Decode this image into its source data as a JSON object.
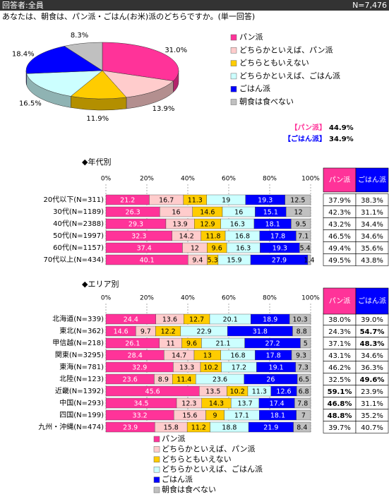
{
  "header": {
    "respondents": "回答者:全員",
    "n": "N=7,476"
  },
  "question": "あなたは、朝食は、パン派・ごはん(お米)派のどちらですか。(単一回答)",
  "summary": [
    {
      "label": "【パン派】",
      "value": "44.9%",
      "color": "#ff3399"
    },
    {
      "label": "【ごはん派】",
      "value": "34.9%",
      "color": "#0000ff"
    }
  ],
  "chart_data": [
    {
      "type": "pie",
      "categories": [
        "パン派",
        "どちらかといえば、パン派",
        "どちらともいえない",
        "どちらかといえば、ごはん派",
        "ごはん派",
        "朝食は食べない"
      ],
      "values": [
        31.0,
        13.9,
        11.9,
        16.5,
        18.4,
        8.3
      ],
      "value_labels": [
        "31.0%",
        "13.9%",
        "11.9%",
        "16.5%",
        "18.4%",
        "8.3%"
      ],
      "colors": [
        "#ff3399",
        "#ffcccc",
        "#ffcc00",
        "#ccffff",
        "#0000ff",
        "#c0c0c0"
      ],
      "legend": "right"
    },
    {
      "type": "bar",
      "orientation": "horizontal",
      "stacked": true,
      "title": "◆年代別",
      "categories": [
        "20代以下(N=311)",
        "30代(N=1189)",
        "40代(N=2388)",
        "50代(N=1997)",
        "60代(N=1157)",
        "70代以上(N=434)"
      ],
      "series": [
        {
          "color": "#ff3399",
          "values": [
            21.2,
            26.3,
            29.3,
            32.3,
            37.4,
            40.1
          ]
        },
        {
          "color": "#ffcccc",
          "values": [
            16.7,
            16.0,
            13.9,
            14.2,
            12.0,
            9.4
          ]
        },
        {
          "color": "#ffcc00",
          "values": [
            11.3,
            14.6,
            12.9,
            11.8,
            9.6,
            5.3
          ]
        },
        {
          "color": "#ccffff",
          "values": [
            19.0,
            16.0,
            16.3,
            16.8,
            16.3,
            15.9
          ]
        },
        {
          "color": "#0000ff",
          "values": [
            19.3,
            15.1,
            18.1,
            17.8,
            19.3,
            27.9
          ]
        },
        {
          "color": "#c0c0c0",
          "values": [
            12.5,
            12.0,
            9.5,
            7.1,
            5.4,
            1.4
          ]
        }
      ],
      "xlim": [
        0,
        100
      ],
      "xticks": [
        {
          "value": 0,
          "label": "0%"
        },
        {
          "value": 20,
          "label": "20%"
        },
        {
          "value": 40,
          "label": "40%"
        },
        {
          "value": 60,
          "label": "60%"
        },
        {
          "value": 80,
          "label": "80%"
        },
        {
          "value": 100,
          "label": "100%"
        }
      ],
      "grid": true,
      "table": {
        "columns": [
          "パン派",
          "ごはん派"
        ],
        "rows": [
          [
            "37.9%",
            "38.3%"
          ],
          [
            "42.3%",
            "31.1%"
          ],
          [
            "43.2%",
            "34.4%"
          ],
          [
            "46.5%",
            "34.6%"
          ],
          [
            "49.4%",
            "35.6%"
          ],
          [
            "49.5%",
            "43.8%"
          ]
        ],
        "bold": []
      }
    },
    {
      "type": "bar",
      "orientation": "horizontal",
      "stacked": true,
      "title": "◆エリア別",
      "categories": [
        "北海道(N=339)",
        "東北(N=362)",
        "甲信越(N=218)",
        "関東(N=3295)",
        "東海(N=781)",
        "北陸(N=123)",
        "近畿(N=1392)",
        "中国(N=293)",
        "四国(N=199)",
        "九州・沖縄(N=474)"
      ],
      "series": [
        {
          "name": "パン派",
          "color": "#ff3399",
          "values": [
            24.4,
            14.6,
            26.1,
            28.4,
            32.9,
            23.6,
            45.6,
            34.5,
            33.2,
            23.9
          ]
        },
        {
          "name": "どちらかといえば、パン派",
          "color": "#ffcccc",
          "values": [
            13.6,
            9.7,
            11.0,
            14.7,
            13.3,
            8.9,
            13.5,
            12.3,
            15.6,
            15.8
          ]
        },
        {
          "name": "どちらともいえない",
          "color": "#ffcc00",
          "values": [
            12.7,
            12.2,
            9.6,
            13.0,
            10.2,
            11.4,
            10.2,
            14.3,
            9.0,
            11.2
          ]
        },
        {
          "name": "どちらかといえば、ごはん派",
          "color": "#ccffff",
          "values": [
            20.1,
            22.9,
            21.1,
            16.8,
            17.2,
            23.6,
            11.3,
            13.7,
            17.1,
            18.8
          ]
        },
        {
          "name": "ごはん派",
          "color": "#0000ff",
          "values": [
            18.9,
            31.8,
            27.2,
            17.8,
            19.1,
            26.0,
            12.6,
            17.4,
            18.1,
            21.9
          ]
        },
        {
          "name": "朝食は食べない",
          "color": "#c0c0c0",
          "values": [
            10.3,
            8.8,
            5.0,
            9.3,
            7.3,
            6.5,
            6.8,
            7.8,
            7.0,
            8.4
          ]
        }
      ],
      "xlim": [
        0,
        100
      ],
      "xticks": [
        {
          "value": 0,
          "label": "0%"
        },
        {
          "value": 20,
          "label": "20%"
        },
        {
          "value": 40,
          "label": "40%"
        },
        {
          "value": 60,
          "label": "60%"
        },
        {
          "value": 80,
          "label": "80%"
        },
        {
          "value": 100,
          "label": "100%"
        }
      ],
      "grid": true,
      "legend": "bottom",
      "table": {
        "columns": [
          "パン派",
          "ごはん派"
        ],
        "rows": [
          [
            "38.0%",
            "39.0%"
          ],
          [
            "24.3%",
            "54.7%"
          ],
          [
            "37.1%",
            "48.3%"
          ],
          [
            "43.1%",
            "34.6%"
          ],
          [
            "46.2%",
            "36.3%"
          ],
          [
            "32.5%",
            "49.6%"
          ],
          [
            "59.1%",
            "23.9%"
          ],
          [
            "46.8%",
            "31.1%"
          ],
          [
            "48.8%",
            "35.2%"
          ],
          [
            "39.7%",
            "40.7%"
          ]
        ],
        "bold": [
          [
            1,
            1
          ],
          [
            2,
            1
          ],
          [
            5,
            1
          ],
          [
            6,
            0
          ],
          [
            7,
            0
          ],
          [
            8,
            0
          ]
        ]
      }
    }
  ]
}
